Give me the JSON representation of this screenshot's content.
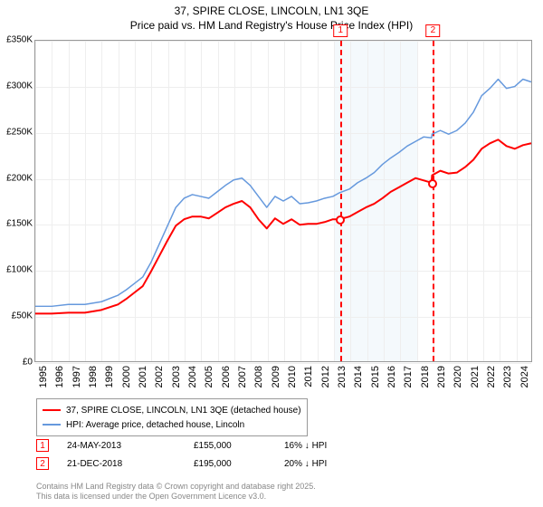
{
  "title": {
    "line1": "37, SPIRE CLOSE, LINCOLN, LN1 3QE",
    "line2": "Price paid vs. HM Land Registry's House Price Index (HPI)"
  },
  "chart": {
    "type": "line",
    "background_color": "#ffffff",
    "grid_color": "#eeeeee",
    "vband_color": "#f4f9fc",
    "axis_color": "#999999",
    "y": {
      "min": 0,
      "max": 350000,
      "step": 50000,
      "ticks": [
        0,
        50000,
        100000,
        150000,
        200000,
        250000,
        300000,
        350000
      ],
      "labels": [
        "£0",
        "£50K",
        "£100K",
        "£150K",
        "£200K",
        "£250K",
        "£300K",
        "£350K"
      ]
    },
    "x": {
      "min": 1995,
      "max": 2025,
      "ticks": [
        1995,
        1996,
        1997,
        1998,
        1999,
        2000,
        2001,
        2002,
        2003,
        2004,
        2005,
        2006,
        2007,
        2008,
        2009,
        2010,
        2011,
        2012,
        2013,
        2014,
        2015,
        2016,
        2017,
        2018,
        2019,
        2020,
        2021,
        2022,
        2023,
        2024
      ],
      "vbands": [
        [
          2013,
          2014
        ],
        [
          2014,
          2015
        ],
        [
          2015,
          2016
        ],
        [
          2016,
          2017
        ],
        [
          2017,
          2018
        ]
      ]
    },
    "markers": [
      {
        "num": "1",
        "x": 2013.4,
        "y": 155000,
        "date": "24-MAY-2013",
        "price": "£155,000",
        "pct": "16% ↓ HPI"
      },
      {
        "num": "2",
        "x": 2018.97,
        "y": 195000,
        "date": "21-DEC-2018",
        "price": "£195,000",
        "pct": "20% ↓ HPI"
      }
    ],
    "series": [
      {
        "name": "price-paid",
        "label": "37, SPIRE CLOSE, LINCOLN, LN1 3QE (detached house)",
        "color": "#ff0000",
        "width": 2,
        "points": [
          [
            1995,
            52000
          ],
          [
            1996,
            52000
          ],
          [
            1997,
            53000
          ],
          [
            1998,
            53000
          ],
          [
            1999,
            56000
          ],
          [
            2000,
            62000
          ],
          [
            2000.5,
            68000
          ],
          [
            2001,
            75000
          ],
          [
            2001.5,
            82000
          ],
          [
            2002,
            98000
          ],
          [
            2002.5,
            115000
          ],
          [
            2003,
            132000
          ],
          [
            2003.5,
            148000
          ],
          [
            2004,
            155000
          ],
          [
            2004.5,
            158000
          ],
          [
            2005,
            158000
          ],
          [
            2005.5,
            156000
          ],
          [
            2006,
            162000
          ],
          [
            2006.5,
            168000
          ],
          [
            2007,
            172000
          ],
          [
            2007.5,
            175000
          ],
          [
            2008,
            168000
          ],
          [
            2008.5,
            155000
          ],
          [
            2009,
            145000
          ],
          [
            2009.5,
            156000
          ],
          [
            2010,
            150000
          ],
          [
            2010.5,
            155000
          ],
          [
            2011,
            149000
          ],
          [
            2011.5,
            150000
          ],
          [
            2012,
            150000
          ],
          [
            2012.5,
            152000
          ],
          [
            2013,
            155000
          ],
          [
            2013.4,
            155000
          ],
          [
            2014,
            158000
          ],
          [
            2014.5,
            163000
          ],
          [
            2015,
            168000
          ],
          [
            2015.5,
            172000
          ],
          [
            2016,
            178000
          ],
          [
            2016.5,
            185000
          ],
          [
            2017,
            190000
          ],
          [
            2017.5,
            195000
          ],
          [
            2018,
            200000
          ],
          [
            2018.97,
            195000
          ],
          [
            2019,
            203000
          ],
          [
            2019.5,
            208000
          ],
          [
            2020,
            205000
          ],
          [
            2020.5,
            206000
          ],
          [
            2021,
            212000
          ],
          [
            2021.5,
            220000
          ],
          [
            2022,
            232000
          ],
          [
            2022.5,
            238000
          ],
          [
            2023,
            242000
          ],
          [
            2023.5,
            235000
          ],
          [
            2024,
            232000
          ],
          [
            2024.5,
            236000
          ],
          [
            2025,
            238000
          ]
        ]
      },
      {
        "name": "hpi",
        "label": "HPI: Average price, detached house, Lincoln",
        "color": "#6699dd",
        "width": 1.5,
        "points": [
          [
            1995,
            60000
          ],
          [
            1996,
            60000
          ],
          [
            1997,
            62000
          ],
          [
            1998,
            62000
          ],
          [
            1999,
            65000
          ],
          [
            2000,
            72000
          ],
          [
            2000.5,
            78000
          ],
          [
            2001,
            85000
          ],
          [
            2001.5,
            92000
          ],
          [
            2002,
            108000
          ],
          [
            2002.5,
            128000
          ],
          [
            2003,
            148000
          ],
          [
            2003.5,
            168000
          ],
          [
            2004,
            178000
          ],
          [
            2004.5,
            182000
          ],
          [
            2005,
            180000
          ],
          [
            2005.5,
            178000
          ],
          [
            2006,
            185000
          ],
          [
            2006.5,
            192000
          ],
          [
            2007,
            198000
          ],
          [
            2007.5,
            200000
          ],
          [
            2008,
            192000
          ],
          [
            2008.5,
            180000
          ],
          [
            2009,
            168000
          ],
          [
            2009.5,
            180000
          ],
          [
            2010,
            175000
          ],
          [
            2010.5,
            180000
          ],
          [
            2011,
            172000
          ],
          [
            2011.5,
            173000
          ],
          [
            2012,
            175000
          ],
          [
            2012.5,
            178000
          ],
          [
            2013,
            180000
          ],
          [
            2013.4,
            184000
          ],
          [
            2014,
            188000
          ],
          [
            2014.5,
            195000
          ],
          [
            2015,
            200000
          ],
          [
            2015.5,
            206000
          ],
          [
            2016,
            215000
          ],
          [
            2016.5,
            222000
          ],
          [
            2017,
            228000
          ],
          [
            2017.5,
            235000
          ],
          [
            2018,
            240000
          ],
          [
            2018.5,
            245000
          ],
          [
            2018.97,
            244000
          ],
          [
            2019,
            248000
          ],
          [
            2019.5,
            252000
          ],
          [
            2020,
            248000
          ],
          [
            2020.5,
            252000
          ],
          [
            2021,
            260000
          ],
          [
            2021.5,
            272000
          ],
          [
            2022,
            290000
          ],
          [
            2022.5,
            298000
          ],
          [
            2023,
            308000
          ],
          [
            2023.5,
            298000
          ],
          [
            2024,
            300000
          ],
          [
            2024.5,
            308000
          ],
          [
            2025,
            305000
          ]
        ]
      }
    ]
  },
  "legend": {
    "items": [
      {
        "series": 0
      },
      {
        "series": 1
      }
    ]
  },
  "footer": {
    "line1": "Contains HM Land Registry data © Crown copyright and database right 2025.",
    "line2": "This data is licensed under the Open Government Licence v3.0."
  }
}
